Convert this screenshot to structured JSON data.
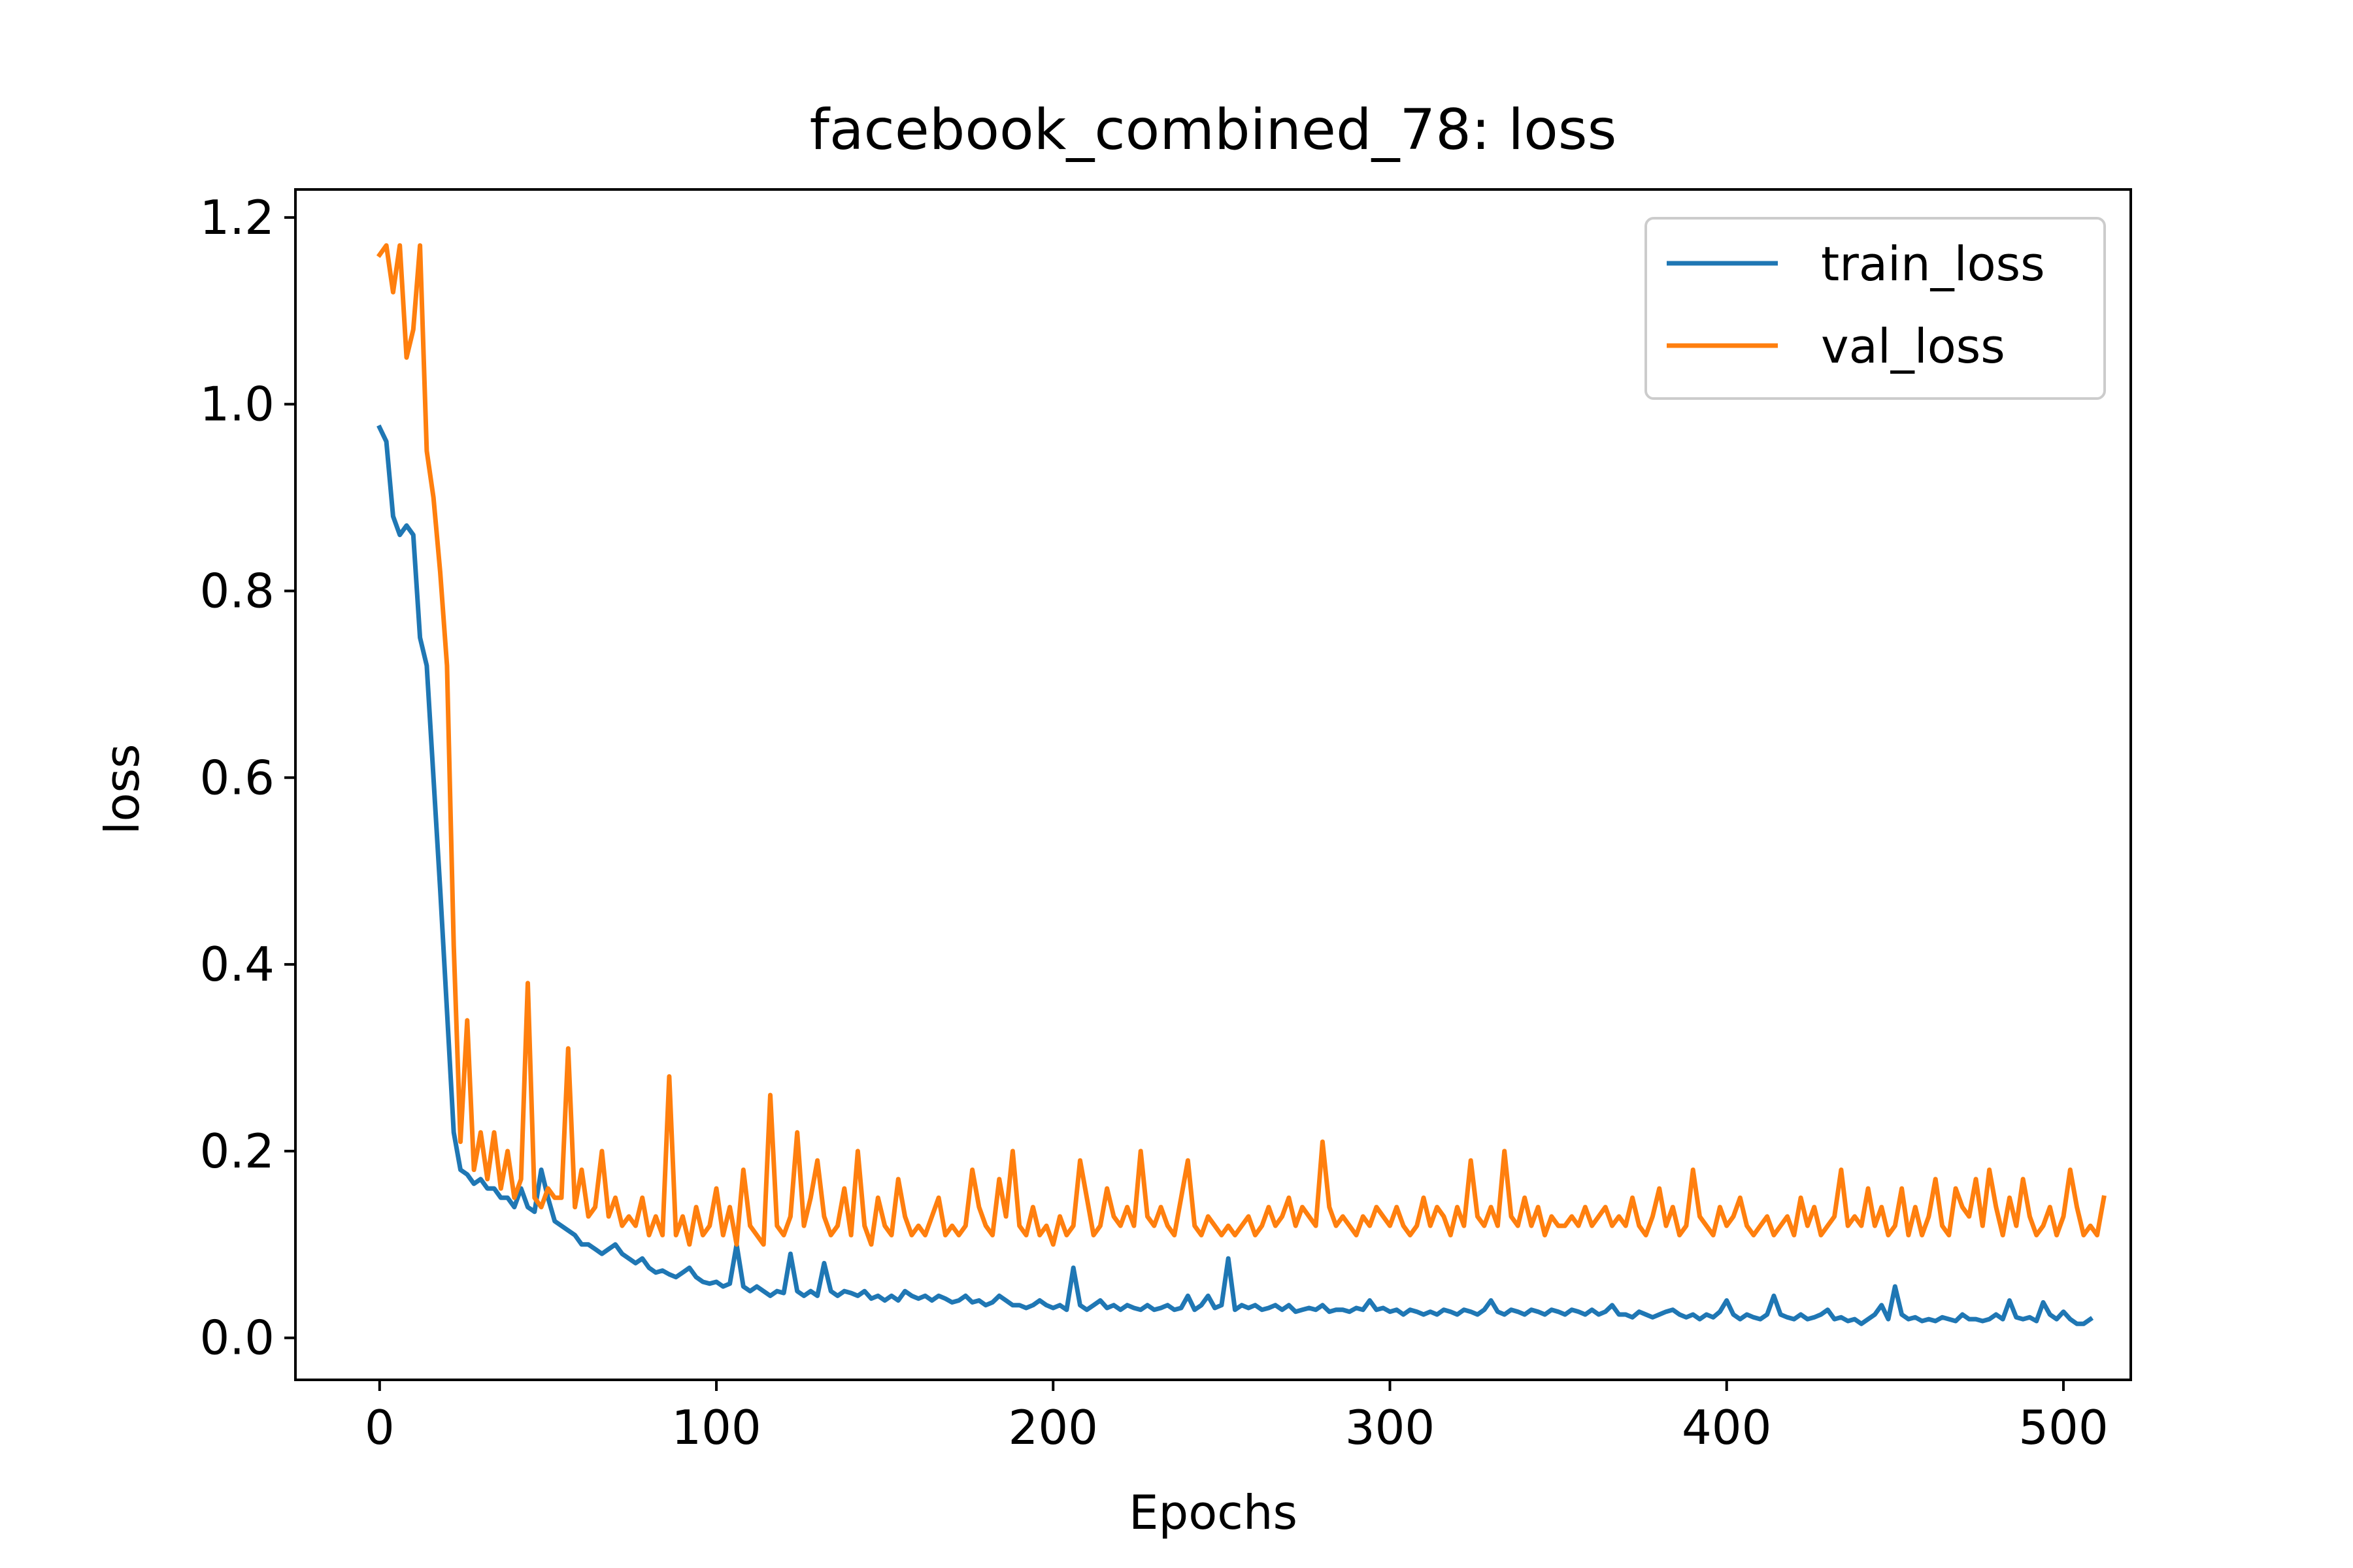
{
  "chart_data": {
    "type": "line",
    "title": "facebook_combined_78: loss",
    "xlabel": "Epochs",
    "ylabel": "loss",
    "xlim": [
      -25,
      520
    ],
    "ylim": [
      -0.045,
      1.23
    ],
    "xticks": [
      0,
      100,
      200,
      300,
      400,
      500
    ],
    "yticks": [
      0.0,
      0.2,
      0.4,
      0.6,
      0.8,
      1.0,
      1.2
    ],
    "ytick_labels": [
      "0.0",
      "0.2",
      "0.4",
      "0.6",
      "0.8",
      "1.0",
      "1.2"
    ],
    "legend_position": "top-right",
    "grid": false,
    "x_step": 2,
    "series": [
      {
        "name": "train_loss",
        "color": "#1f77b4",
        "values": [
          0.975,
          0.96,
          0.88,
          0.86,
          0.87,
          0.86,
          0.75,
          0.72,
          0.6,
          0.48,
          0.35,
          0.22,
          0.18,
          0.175,
          0.165,
          0.17,
          0.16,
          0.16,
          0.15,
          0.15,
          0.14,
          0.16,
          0.14,
          0.135,
          0.18,
          0.15,
          0.125,
          0.12,
          0.115,
          0.11,
          0.1,
          0.1,
          0.095,
          0.09,
          0.095,
          0.1,
          0.09,
          0.085,
          0.08,
          0.085,
          0.075,
          0.07,
          0.072,
          0.068,
          0.065,
          0.07,
          0.075,
          0.065,
          0.06,
          0.058,
          0.06,
          0.055,
          0.058,
          0.1,
          0.055,
          0.05,
          0.055,
          0.05,
          0.045,
          0.05,
          0.048,
          0.09,
          0.05,
          0.045,
          0.05,
          0.045,
          0.08,
          0.05,
          0.045,
          0.05,
          0.048,
          0.045,
          0.05,
          0.042,
          0.045,
          0.04,
          0.045,
          0.04,
          0.05,
          0.045,
          0.042,
          0.045,
          0.04,
          0.045,
          0.042,
          0.038,
          0.04,
          0.045,
          0.038,
          0.04,
          0.035,
          0.038,
          0.045,
          0.04,
          0.035,
          0.035,
          0.032,
          0.035,
          0.04,
          0.035,
          0.032,
          0.035,
          0.03,
          0.075,
          0.035,
          0.03,
          0.035,
          0.04,
          0.032,
          0.035,
          0.03,
          0.035,
          0.032,
          0.03,
          0.035,
          0.03,
          0.032,
          0.035,
          0.03,
          0.032,
          0.045,
          0.03,
          0.035,
          0.045,
          0.032,
          0.035,
          0.085,
          0.03,
          0.035,
          0.032,
          0.035,
          0.03,
          0.032,
          0.035,
          0.03,
          0.035,
          0.028,
          0.03,
          0.032,
          0.03,
          0.035,
          0.028,
          0.03,
          0.03,
          0.028,
          0.032,
          0.03,
          0.04,
          0.03,
          0.032,
          0.028,
          0.03,
          0.025,
          0.03,
          0.028,
          0.025,
          0.028,
          0.025,
          0.03,
          0.028,
          0.025,
          0.03,
          0.028,
          0.025,
          0.03,
          0.04,
          0.028,
          0.025,
          0.03,
          0.028,
          0.025,
          0.03,
          0.028,
          0.025,
          0.03,
          0.028,
          0.025,
          0.03,
          0.028,
          0.025,
          0.03,
          0.025,
          0.028,
          0.035,
          0.025,
          0.025,
          0.022,
          0.028,
          0.025,
          0.022,
          0.025,
          0.028,
          0.03,
          0.025,
          0.022,
          0.025,
          0.02,
          0.025,
          0.022,
          0.028,
          0.04,
          0.025,
          0.02,
          0.025,
          0.022,
          0.02,
          0.025,
          0.045,
          0.025,
          0.022,
          0.02,
          0.025,
          0.02,
          0.022,
          0.025,
          0.03,
          0.02,
          0.022,
          0.018,
          0.02,
          0.015,
          0.02,
          0.025,
          0.035,
          0.02,
          0.055,
          0.025,
          0.02,
          0.022,
          0.018,
          0.02,
          0.018,
          0.022,
          0.02,
          0.018,
          0.025,
          0.02,
          0.02,
          0.018,
          0.02,
          0.025,
          0.02,
          0.04,
          0.022,
          0.02,
          0.022,
          0.018,
          0.038,
          0.025,
          0.02,
          0.028,
          0.02,
          0.015,
          0.015,
          0.02
        ]
      },
      {
        "name": "val_loss",
        "color": "#ff7f0e",
        "values": [
          1.16,
          1.17,
          1.12,
          1.17,
          1.05,
          1.08,
          1.17,
          0.95,
          0.9,
          0.82,
          0.72,
          0.42,
          0.21,
          0.34,
          0.18,
          0.22,
          0.17,
          0.22,
          0.16,
          0.2,
          0.15,
          0.17,
          0.38,
          0.15,
          0.14,
          0.16,
          0.15,
          0.15,
          0.31,
          0.14,
          0.18,
          0.13,
          0.14,
          0.2,
          0.13,
          0.15,
          0.12,
          0.13,
          0.12,
          0.15,
          0.11,
          0.13,
          0.11,
          0.28,
          0.11,
          0.13,
          0.1,
          0.14,
          0.11,
          0.12,
          0.16,
          0.11,
          0.14,
          0.1,
          0.18,
          0.12,
          0.11,
          0.1,
          0.26,
          0.12,
          0.11,
          0.13,
          0.22,
          0.12,
          0.15,
          0.19,
          0.13,
          0.11,
          0.12,
          0.16,
          0.11,
          0.2,
          0.12,
          0.1,
          0.15,
          0.12,
          0.11,
          0.17,
          0.13,
          0.11,
          0.12,
          0.11,
          0.13,
          0.15,
          0.11,
          0.12,
          0.11,
          0.12,
          0.18,
          0.14,
          0.12,
          0.11,
          0.17,
          0.13,
          0.2,
          0.12,
          0.11,
          0.14,
          0.11,
          0.12,
          0.1,
          0.13,
          0.11,
          0.12,
          0.19,
          0.15,
          0.11,
          0.12,
          0.16,
          0.13,
          0.12,
          0.14,
          0.12,
          0.2,
          0.13,
          0.12,
          0.14,
          0.12,
          0.11,
          0.15,
          0.19,
          0.12,
          0.11,
          0.13,
          0.12,
          0.11,
          0.12,
          0.11,
          0.12,
          0.13,
          0.11,
          0.12,
          0.14,
          0.12,
          0.13,
          0.15,
          0.12,
          0.14,
          0.13,
          0.12,
          0.21,
          0.14,
          0.12,
          0.13,
          0.12,
          0.11,
          0.13,
          0.12,
          0.14,
          0.13,
          0.12,
          0.14,
          0.12,
          0.11,
          0.12,
          0.15,
          0.12,
          0.14,
          0.13,
          0.11,
          0.14,
          0.12,
          0.19,
          0.13,
          0.12,
          0.14,
          0.12,
          0.2,
          0.13,
          0.12,
          0.15,
          0.12,
          0.14,
          0.11,
          0.13,
          0.12,
          0.12,
          0.13,
          0.12,
          0.14,
          0.12,
          0.13,
          0.14,
          0.12,
          0.13,
          0.12,
          0.15,
          0.12,
          0.11,
          0.13,
          0.16,
          0.12,
          0.14,
          0.11,
          0.12,
          0.18,
          0.13,
          0.12,
          0.11,
          0.14,
          0.12,
          0.13,
          0.15,
          0.12,
          0.11,
          0.12,
          0.13,
          0.11,
          0.12,
          0.13,
          0.11,
          0.15,
          0.12,
          0.14,
          0.11,
          0.12,
          0.13,
          0.18,
          0.12,
          0.13,
          0.12,
          0.16,
          0.12,
          0.14,
          0.11,
          0.12,
          0.16,
          0.11,
          0.14,
          0.11,
          0.13,
          0.17,
          0.12,
          0.11,
          0.16,
          0.14,
          0.13,
          0.17,
          0.12,
          0.18,
          0.14,
          0.11,
          0.15,
          0.12,
          0.17,
          0.13,
          0.11,
          0.12,
          0.14,
          0.11,
          0.13,
          0.18,
          0.14,
          0.11,
          0.12,
          0.11,
          0.15
        ]
      }
    ]
  }
}
